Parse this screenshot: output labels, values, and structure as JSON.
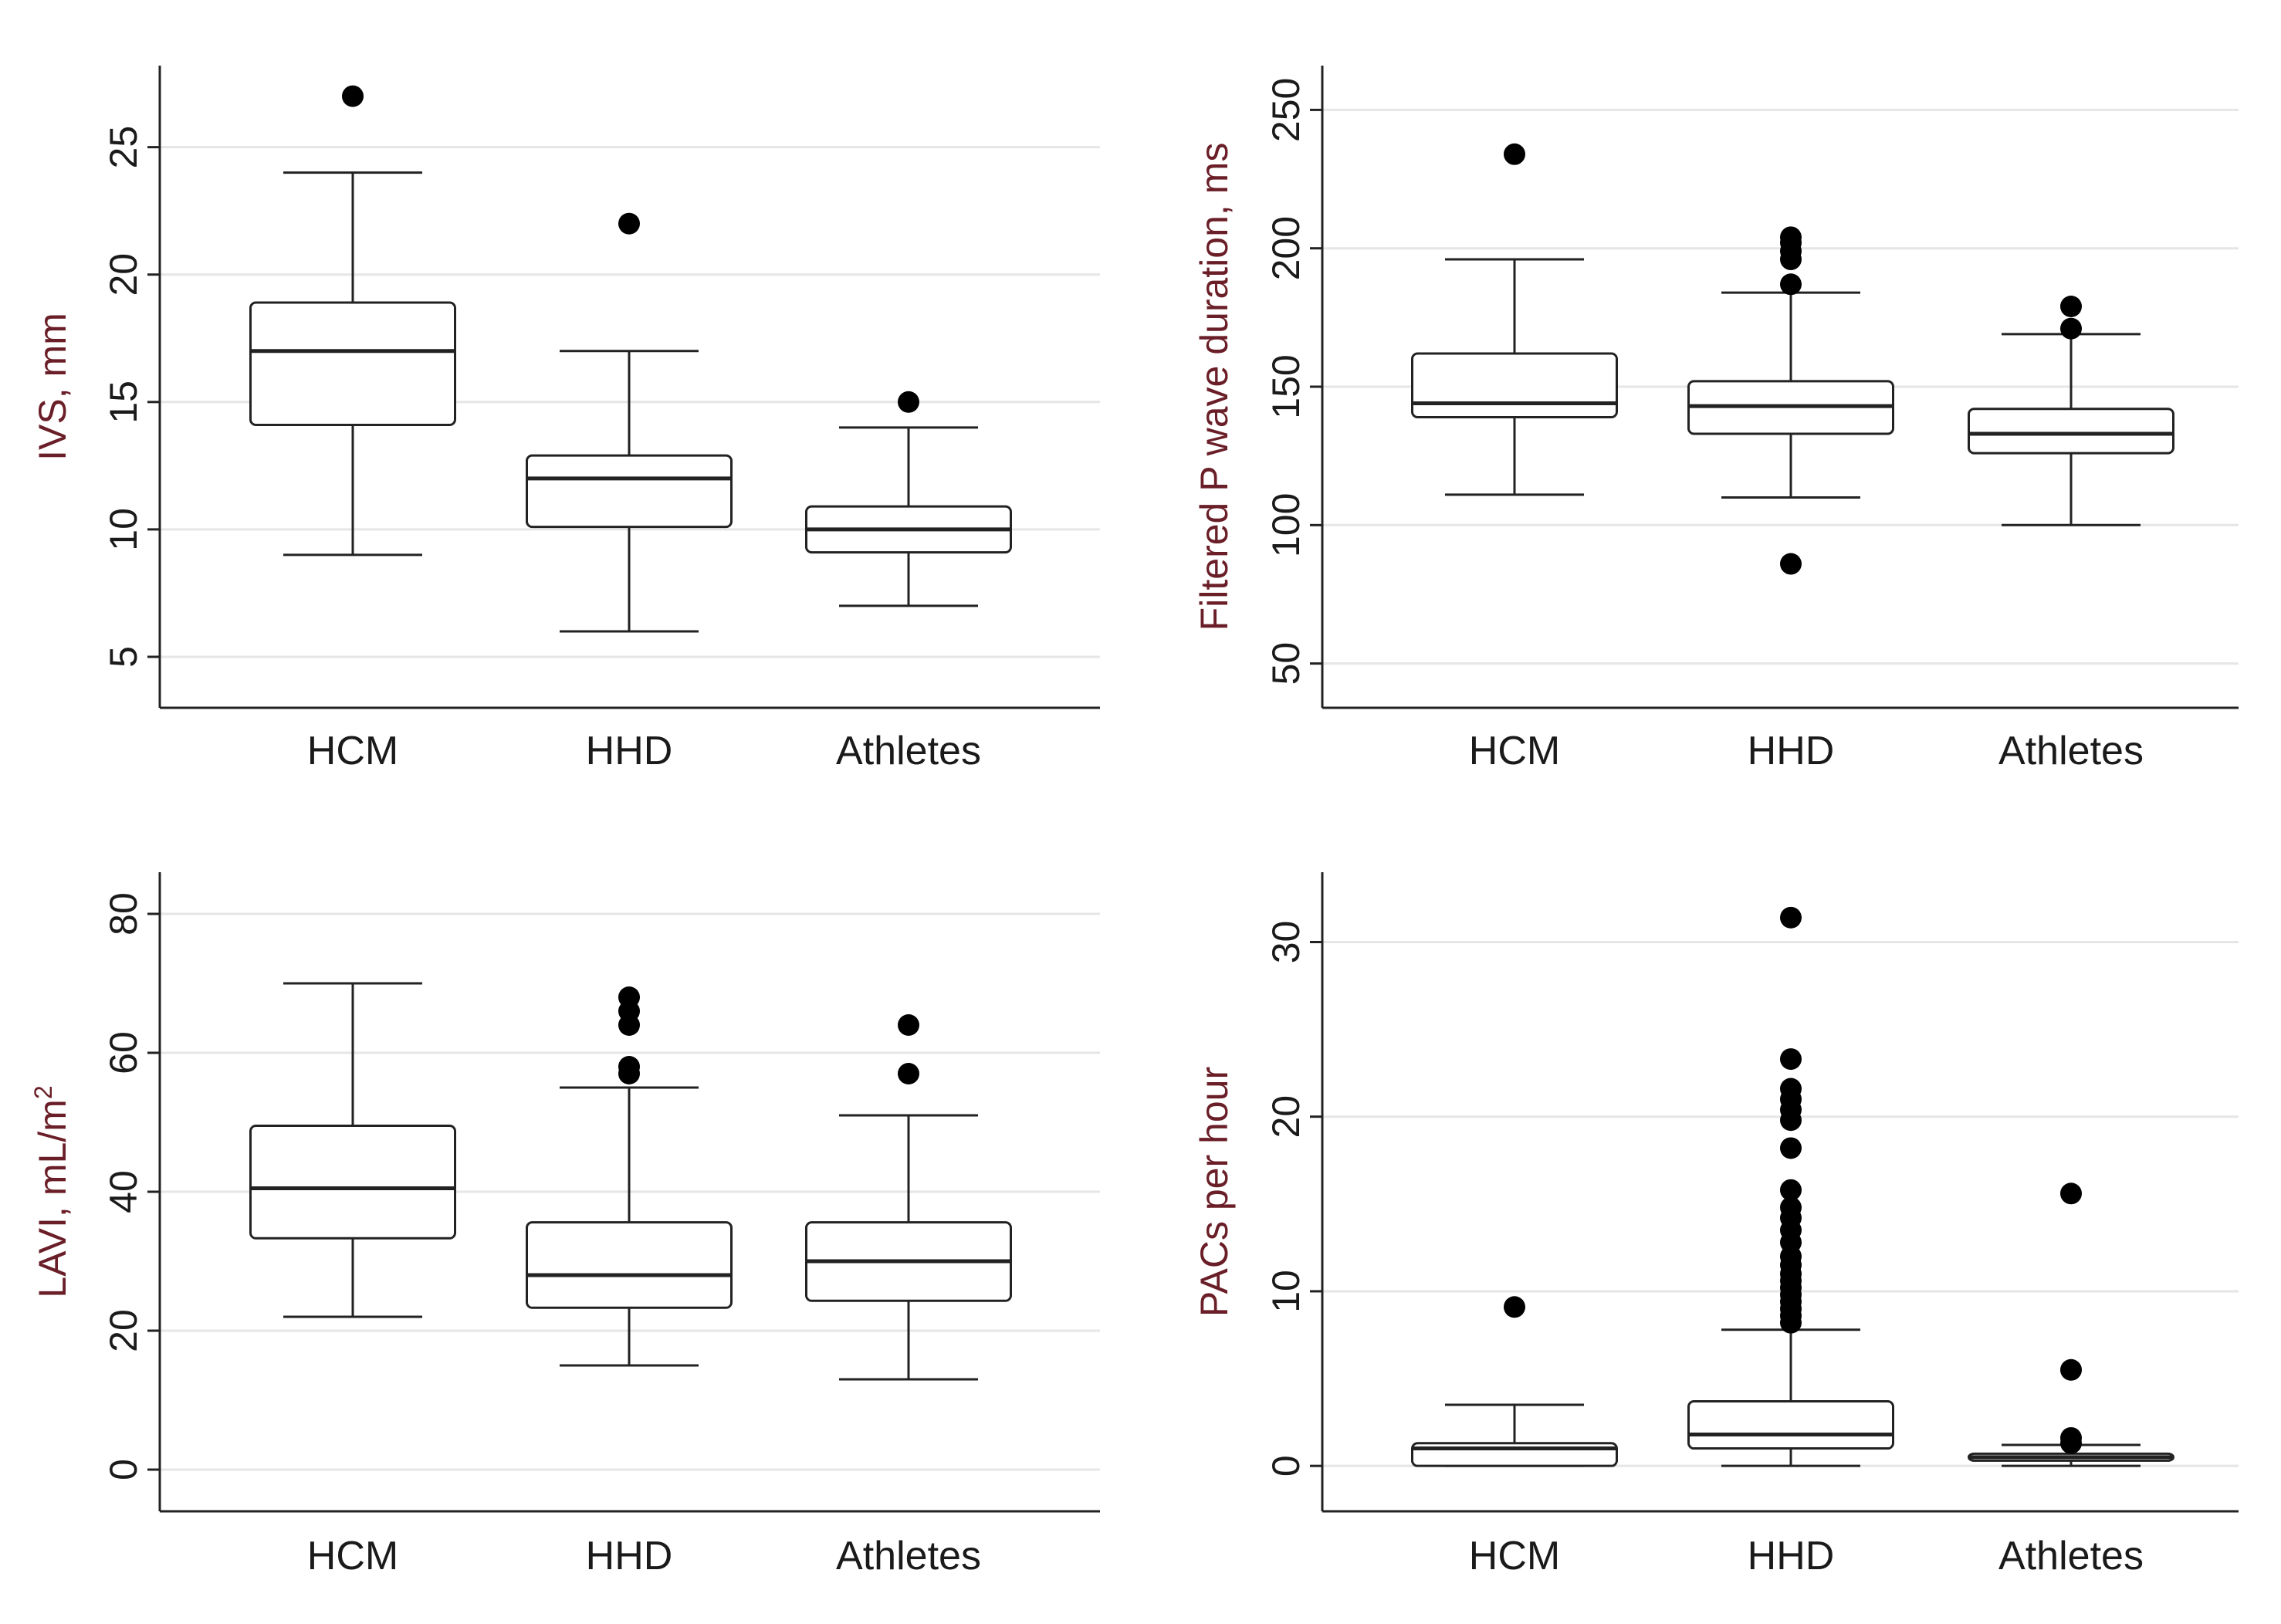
{
  "chart_data": [
    {
      "type": "box",
      "id": "ivs",
      "ylabel": "IVS, mm",
      "ylim": [
        3,
        28.2
      ],
      "yticks": [
        5,
        10,
        15,
        20,
        25
      ],
      "grid": true,
      "categories": [
        "HCM",
        "HHD",
        "Athletes"
      ],
      "boxes": [
        {
          "q1": 14.1,
          "median": 17.0,
          "q3": 18.9,
          "whisker_low": 9.0,
          "whisker_high": 24.0,
          "outliers": [
            27.0
          ]
        },
        {
          "q1": 10.1,
          "median": 12.0,
          "q3": 12.9,
          "whisker_low": 6.0,
          "whisker_high": 17.0,
          "outliers": [
            22.0
          ]
        },
        {
          "q1": 9.1,
          "median": 10.0,
          "q3": 10.9,
          "whisker_low": 7.0,
          "whisker_high": 14.0,
          "outliers": [
            15.0
          ]
        }
      ]
    },
    {
      "type": "box",
      "id": "p-wave",
      "ylabel": "Filtered P wave duration, ms",
      "ylim": [
        34,
        266
      ],
      "yticks": [
        50,
        100,
        150,
        200,
        250
      ],
      "grid": true,
      "categories": [
        "HCM",
        "HHD",
        "Athletes"
      ],
      "boxes": [
        {
          "q1": 139,
          "median": 144,
          "q3": 162,
          "whisker_low": 111,
          "whisker_high": 196,
          "outliers": [
            234
          ]
        },
        {
          "q1": 133,
          "median": 143,
          "q3": 152,
          "whisker_low": 110,
          "whisker_high": 184,
          "outliers": [
            86,
            187,
            196,
            199,
            202,
            204
          ]
        },
        {
          "q1": 126,
          "median": 133,
          "q3": 142,
          "whisker_low": 100,
          "whisker_high": 169,
          "outliers": [
            171,
            179
          ]
        }
      ]
    },
    {
      "type": "box",
      "id": "lavi",
      "ylabel": "LAVI, mL/m",
      "ylabel_superscript": "2",
      "ylim": [
        -6,
        86
      ],
      "yticks": [
        0,
        20,
        40,
        60,
        80
      ],
      "grid": true,
      "categories": [
        "HCM",
        "HHD",
        "Athletes"
      ],
      "boxes": [
        {
          "q1": 33.3,
          "median": 40.5,
          "q3": 49.5,
          "whisker_low": 22.0,
          "whisker_high": 70.0,
          "outliers": []
        },
        {
          "q1": 23.3,
          "median": 28.0,
          "q3": 35.6,
          "whisker_low": 15.0,
          "whisker_high": 55.0,
          "outliers": [
            57.0,
            58.0,
            64.0,
            66.0,
            68.0
          ]
        },
        {
          "q1": 24.3,
          "median": 30.0,
          "q3": 35.6,
          "whisker_low": 13.0,
          "whisker_high": 51.0,
          "outliers": [
            57.0,
            64.0
          ]
        }
      ]
    },
    {
      "type": "box",
      "id": "pacs",
      "ylabel": "PACs per hour",
      "ylim": [
        -2.6,
        34
      ],
      "yticks": [
        0,
        10,
        20,
        30
      ],
      "grid": true,
      "categories": [
        "HCM",
        "HHD",
        "Athletes"
      ],
      "boxes": [
        {
          "q1": 0.0,
          "median": 1.0,
          "q3": 1.3,
          "whisker_low": 0.0,
          "whisker_high": 3.5,
          "outliers": [
            9.1
          ]
        },
        {
          "q1": 1.0,
          "median": 1.8,
          "q3": 3.7,
          "whisker_low": 0.0,
          "whisker_high": 7.8,
          "outliers": [
            8.2,
            8.6,
            9.0,
            9.4,
            9.8,
            10.2,
            10.6,
            11.0,
            11.5,
            12.0,
            12.8,
            13.5,
            14.2,
            14.8,
            15.8,
            18.2,
            19.8,
            20.4,
            21.0,
            21.6,
            23.3,
            31.4
          ]
        },
        {
          "q1": 0.3,
          "median": 0.5,
          "q3": 0.7,
          "whisker_low": 0.0,
          "whisker_high": 1.2,
          "outliers": [
            1.3,
            1.6,
            5.5,
            15.6
          ]
        }
      ]
    }
  ]
}
